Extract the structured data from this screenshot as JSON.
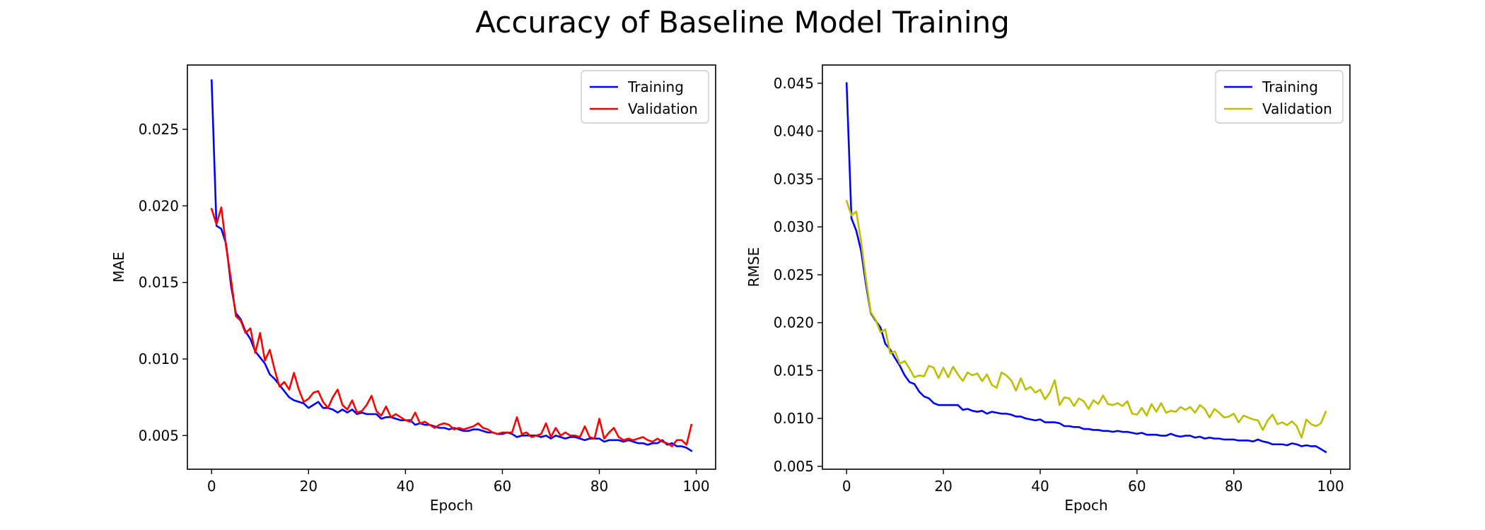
{
  "title": "Accuracy of Baseline Model Training",
  "chart_data": [
    {
      "type": "line",
      "xlabel": "Epoch",
      "ylabel": "MAE",
      "xlim": [
        -5,
        104
      ],
      "ylim": [
        0.0028,
        0.0292
      ],
      "xticks": [
        0,
        20,
        40,
        60,
        80,
        100
      ],
      "yticks": [
        0.005,
        0.01,
        0.015,
        0.02,
        0.025
      ],
      "ytick_labels": [
        "0.005",
        "0.010",
        "0.015",
        "0.020",
        "0.025"
      ],
      "grid": false,
      "legend_position": "upper right",
      "x_start": 0,
      "series": [
        {
          "name": "Training",
          "color": "#0000ff",
          "values": [
            0.0282,
            0.0187,
            0.0185,
            0.0175,
            0.0148,
            0.013,
            0.0126,
            0.0118,
            0.0113,
            0.0105,
            0.0101,
            0.0097,
            0.009,
            0.0087,
            0.0083,
            0.0079,
            0.0075,
            0.0073,
            0.0072,
            0.0071,
            0.0068,
            0.007,
            0.0072,
            0.0068,
            0.0068,
            0.0067,
            0.0065,
            0.0067,
            0.0065,
            0.0067,
            0.0064,
            0.0065,
            0.0064,
            0.0064,
            0.0064,
            0.0061,
            0.0062,
            0.0062,
            0.0061,
            0.006,
            0.006,
            0.006,
            0.0057,
            0.0058,
            0.0057,
            0.0057,
            0.0056,
            0.0055,
            0.0055,
            0.0054,
            0.0055,
            0.0054,
            0.0053,
            0.0053,
            0.0054,
            0.0054,
            0.0053,
            0.0052,
            0.0052,
            0.0051,
            0.0051,
            0.0052,
            0.0051,
            0.0049,
            0.005,
            0.005,
            0.005,
            0.005,
            0.0049,
            0.005,
            0.0048,
            0.005,
            0.0049,
            0.0048,
            0.0049,
            0.0049,
            0.0048,
            0.0047,
            0.0048,
            0.0048,
            0.0048,
            0.0046,
            0.0047,
            0.0047,
            0.0047,
            0.0046,
            0.0047,
            0.0046,
            0.0045,
            0.0045,
            0.0044,
            0.0045,
            0.0045,
            0.0047,
            0.0044,
            0.0045,
            0.0043,
            0.0043,
            0.0042,
            0.004
          ]
        },
        {
          "name": "Validation",
          "color": "#ff0000",
          "values": [
            0.0198,
            0.0188,
            0.0199,
            0.0173,
            0.0152,
            0.0128,
            0.0125,
            0.0117,
            0.012,
            0.0104,
            0.0117,
            0.0099,
            0.0106,
            0.0093,
            0.0082,
            0.0085,
            0.008,
            0.0091,
            0.008,
            0.0072,
            0.0074,
            0.0078,
            0.0079,
            0.0072,
            0.0068,
            0.0075,
            0.008,
            0.007,
            0.0067,
            0.0073,
            0.0065,
            0.0066,
            0.007,
            0.0076,
            0.0066,
            0.0063,
            0.0069,
            0.0062,
            0.0064,
            0.0062,
            0.006,
            0.0059,
            0.0065,
            0.0058,
            0.0059,
            0.0057,
            0.0055,
            0.0057,
            0.0058,
            0.0057,
            0.0054,
            0.0055,
            0.0054,
            0.0055,
            0.0056,
            0.0058,
            0.0055,
            0.0054,
            0.0052,
            0.0051,
            0.0052,
            0.0052,
            0.0052,
            0.0062,
            0.0051,
            0.0052,
            0.0049,
            0.005,
            0.0051,
            0.0058,
            0.0049,
            0.0055,
            0.005,
            0.0052,
            0.005,
            0.005,
            0.0049,
            0.0056,
            0.0049,
            0.0048,
            0.0061,
            0.0048,
            0.0052,
            0.0055,
            0.0049,
            0.0047,
            0.0048,
            0.0047,
            0.0048,
            0.0049,
            0.0047,
            0.0046,
            0.0048,
            0.0046,
            0.0045,
            0.0043,
            0.0047,
            0.0047,
            0.0044,
            0.0057
          ]
        }
      ]
    },
    {
      "type": "line",
      "xlabel": "Epoch",
      "ylabel": "RMSE",
      "xlim": [
        -5,
        104
      ],
      "ylim": [
        0.0047,
        0.0469
      ],
      "xticks": [
        0,
        20,
        40,
        60,
        80,
        100
      ],
      "yticks": [
        0.005,
        0.01,
        0.015,
        0.02,
        0.025,
        0.03,
        0.035,
        0.04,
        0.045
      ],
      "ytick_labels": [
        "0.005",
        "0.010",
        "0.015",
        "0.020",
        "0.025",
        "0.030",
        "0.035",
        "0.040",
        "0.045"
      ],
      "grid": false,
      "legend_position": "upper right",
      "x_start": 0,
      "series": [
        {
          "name": "Training",
          "color": "#0000ff",
          "values": [
            0.045,
            0.0309,
            0.0296,
            0.0275,
            0.024,
            0.021,
            0.0202,
            0.0195,
            0.0178,
            0.0172,
            0.0163,
            0.0155,
            0.0145,
            0.0138,
            0.0136,
            0.0128,
            0.0123,
            0.0121,
            0.0116,
            0.0114,
            0.0114,
            0.0114,
            0.0114,
            0.0114,
            0.0109,
            0.011,
            0.0108,
            0.0107,
            0.0108,
            0.0105,
            0.0107,
            0.0106,
            0.0105,
            0.0105,
            0.0104,
            0.0102,
            0.0102,
            0.01,
            0.0099,
            0.0098,
            0.0099,
            0.0096,
            0.0096,
            0.0096,
            0.0095,
            0.0092,
            0.0092,
            0.0091,
            0.0091,
            0.0089,
            0.0089,
            0.0088,
            0.0088,
            0.0087,
            0.0087,
            0.0086,
            0.0087,
            0.0086,
            0.0086,
            0.0085,
            0.0084,
            0.0085,
            0.0083,
            0.0083,
            0.0083,
            0.0082,
            0.0082,
            0.0084,
            0.0082,
            0.0081,
            0.0082,
            0.0082,
            0.008,
            0.0081,
            0.0079,
            0.008,
            0.0079,
            0.0079,
            0.0078,
            0.0078,
            0.0078,
            0.0077,
            0.0077,
            0.0077,
            0.0076,
            0.0078,
            0.0076,
            0.0075,
            0.0073,
            0.0073,
            0.0073,
            0.0072,
            0.0074,
            0.0073,
            0.0071,
            0.0072,
            0.0071,
            0.0071,
            0.0068,
            0.0065
          ]
        },
        {
          "name": "Validation",
          "color": "#bfbf00",
          "values": [
            0.0327,
            0.0312,
            0.0316,
            0.0285,
            0.0245,
            0.0211,
            0.0203,
            0.019,
            0.0193,
            0.0168,
            0.017,
            0.0157,
            0.016,
            0.0152,
            0.0143,
            0.0145,
            0.0144,
            0.0155,
            0.0153,
            0.0142,
            0.0153,
            0.0143,
            0.0154,
            0.0146,
            0.0139,
            0.0148,
            0.0145,
            0.0147,
            0.0139,
            0.0146,
            0.0135,
            0.0132,
            0.0148,
            0.0145,
            0.014,
            0.0129,
            0.0142,
            0.013,
            0.0133,
            0.0127,
            0.013,
            0.012,
            0.0127,
            0.014,
            0.0114,
            0.0122,
            0.0121,
            0.0113,
            0.0121,
            0.0118,
            0.011,
            0.0119,
            0.0115,
            0.0124,
            0.0115,
            0.0114,
            0.0116,
            0.0113,
            0.0118,
            0.0105,
            0.0104,
            0.0111,
            0.0103,
            0.0115,
            0.0107,
            0.0116,
            0.0106,
            0.0108,
            0.0107,
            0.0112,
            0.0109,
            0.0112,
            0.0106,
            0.0114,
            0.011,
            0.0101,
            0.011,
            0.0106,
            0.0101,
            0.0102,
            0.0105,
            0.0096,
            0.0103,
            0.0101,
            0.0099,
            0.0098,
            0.0088,
            0.0098,
            0.0104,
            0.0094,
            0.0096,
            0.0093,
            0.0097,
            0.0092,
            0.008,
            0.0099,
            0.0094,
            0.0092,
            0.0095,
            0.0107
          ]
        }
      ]
    }
  ]
}
